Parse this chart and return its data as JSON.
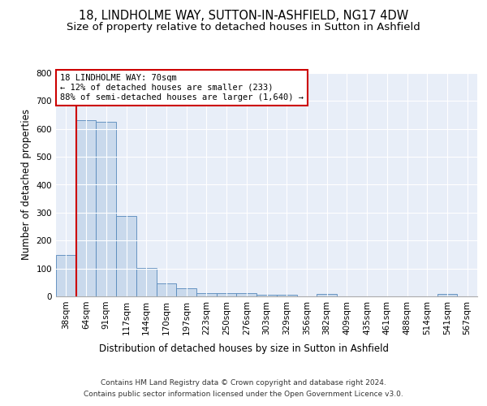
{
  "title": "18, LINDHOLME WAY, SUTTON-IN-ASHFIELD, NG17 4DW",
  "subtitle": "Size of property relative to detached houses in Sutton in Ashfield",
  "xlabel": "Distribution of detached houses by size in Sutton in Ashfield",
  "ylabel": "Number of detached properties",
  "footnote1": "Contains HM Land Registry data © Crown copyright and database right 2024.",
  "footnote2": "Contains public sector information licensed under the Open Government Licence v3.0.",
  "bar_labels": [
    "38sqm",
    "64sqm",
    "91sqm",
    "117sqm",
    "144sqm",
    "170sqm",
    "197sqm",
    "223sqm",
    "250sqm",
    "276sqm",
    "303sqm",
    "329sqm",
    "356sqm",
    "382sqm",
    "409sqm",
    "435sqm",
    "461sqm",
    "488sqm",
    "514sqm",
    "541sqm",
    "567sqm"
  ],
  "bar_values": [
    148,
    630,
    625,
    288,
    103,
    47,
    30,
    12,
    13,
    12,
    5,
    7,
    0,
    8,
    0,
    0,
    0,
    0,
    0,
    8,
    0
  ],
  "bar_color": "#c9d9ec",
  "bar_edge_color": "#5588bb",
  "property_sqm": 70,
  "property_label": "18 LINDHOLME WAY: 70sqm",
  "annotation_line1": "← 12% of detached houses are smaller (233)",
  "annotation_line2": "88% of semi-detached houses are larger (1,640) →",
  "annotation_box_color": "#ffffff",
  "annotation_border_color": "#cc0000",
  "vline_color": "#cc0000",
  "ylim": [
    0,
    800
  ],
  "yticks": [
    0,
    100,
    200,
    300,
    400,
    500,
    600,
    700,
    800
  ],
  "background_color": "#e8eef8",
  "grid_color": "#ffffff",
  "title_fontsize": 10.5,
  "subtitle_fontsize": 9.5,
  "axis_label_fontsize": 8.5,
  "tick_fontsize": 7.5,
  "annotation_fontsize": 7.5,
  "footnote_fontsize": 6.5
}
